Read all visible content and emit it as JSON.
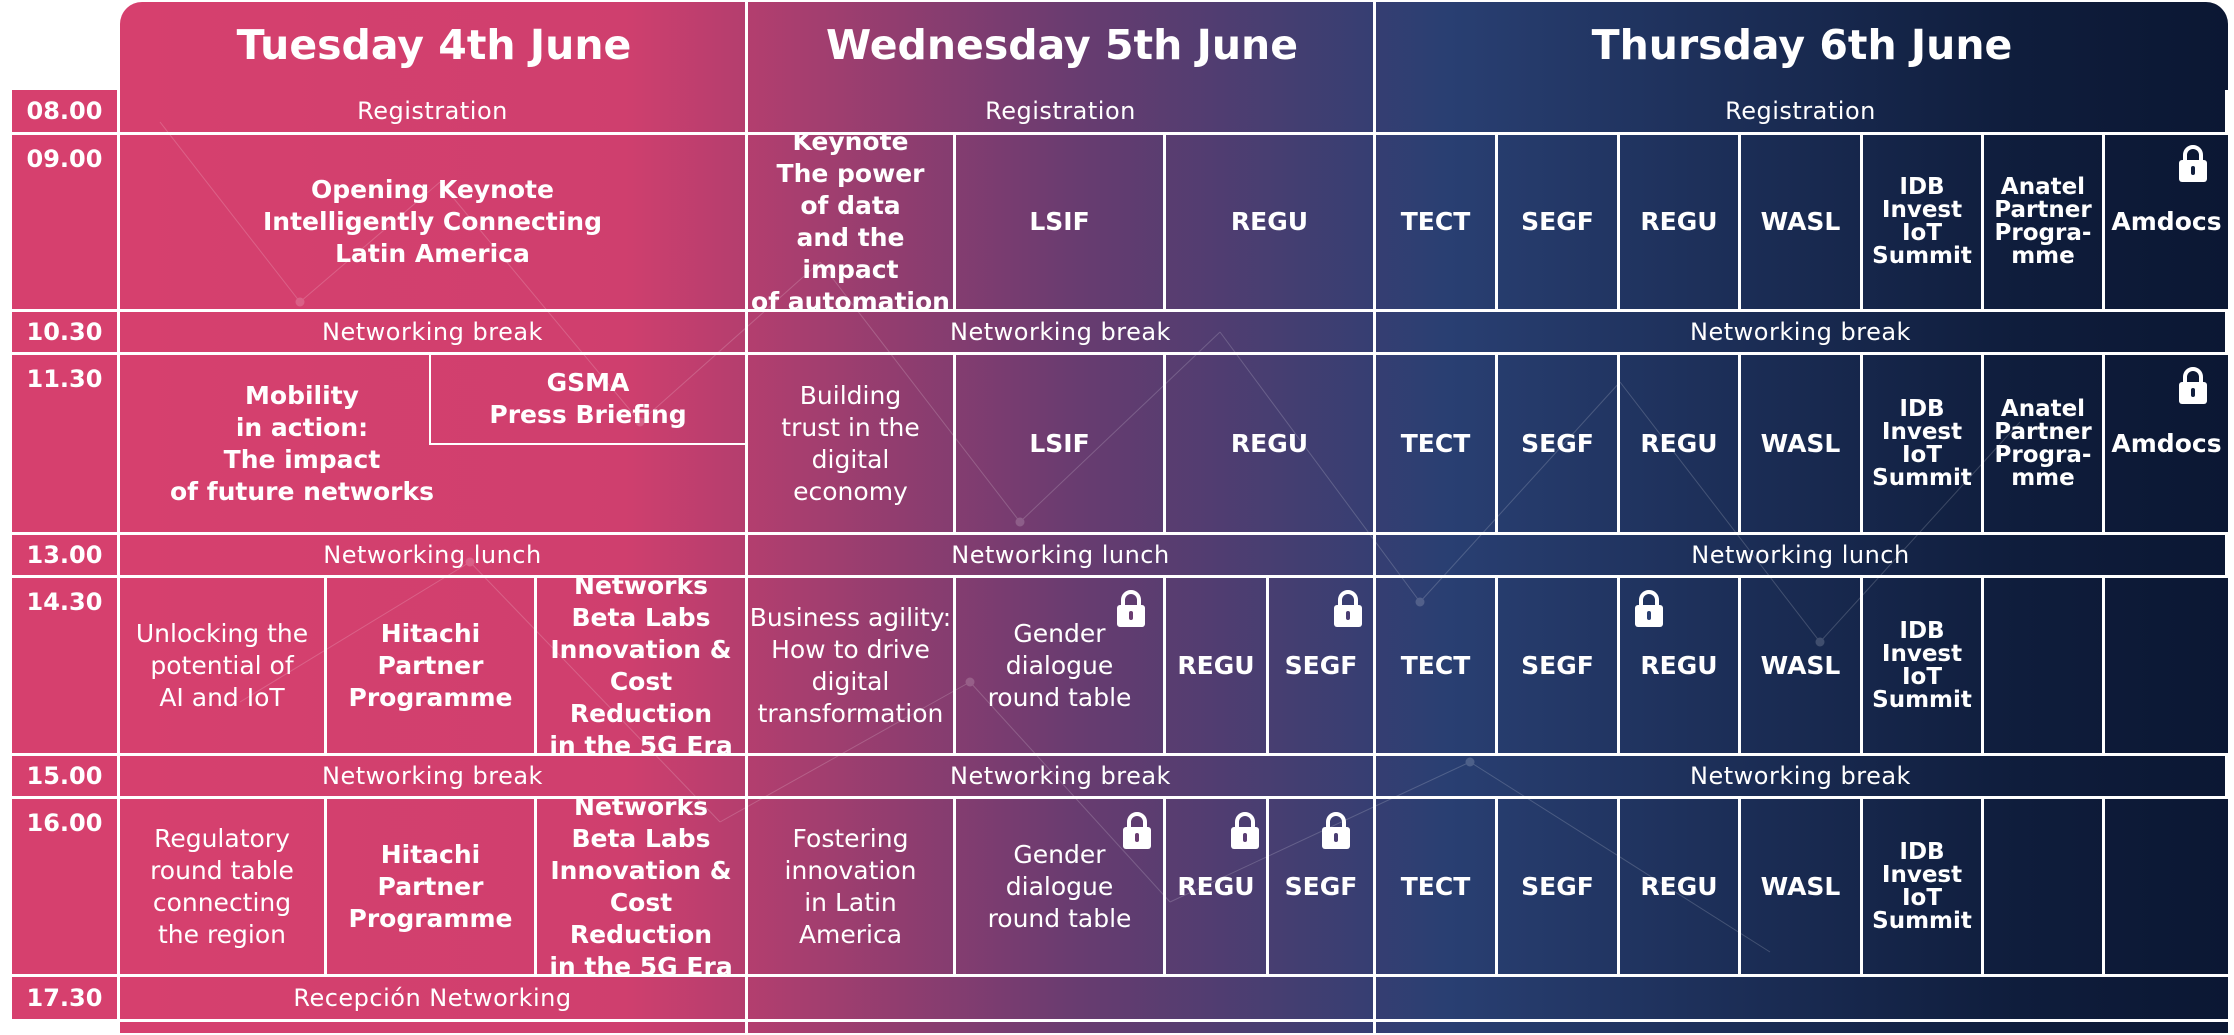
{
  "days": [
    "Tuesday 4th June",
    "Wednesday 5th June",
    "Thursday 6th June"
  ],
  "times": [
    "08.00",
    "09.00",
    "10.30",
    "11.30",
    "13.00",
    "14.30",
    "15.00",
    "16.00",
    "17.30"
  ],
  "bars": {
    "registration": "Registration",
    "networking_break": "Networking break",
    "networking_lunch": "Networking lunch",
    "reception": "Recepción Networking"
  },
  "tue": {
    "opening_keynote": [
      "Opening Keynote",
      "Intelligently Connecting",
      "Latin America"
    ],
    "mobility": [
      "Mobility",
      "in action:",
      "The impact",
      "of future networks"
    ],
    "gsma": [
      "GSMA",
      "Press Briefing"
    ],
    "unlocking": [
      "Unlocking the",
      "potential of",
      "AI and IoT"
    ],
    "hitachi": [
      "Hitachi",
      "Partner",
      "Programme"
    ],
    "networks_beta": [
      "Networks",
      "Beta Labs",
      "Innovation &",
      "Cost Reduction",
      "in the 5G Era"
    ],
    "regulatory": [
      "Regulatory",
      "round table",
      "connecting",
      "the region"
    ]
  },
  "wed": {
    "keynote": [
      "Keynote",
      "The power",
      "of data",
      "and the impact",
      "of automation"
    ],
    "building_trust": [
      "Building",
      "trust in the",
      "digital",
      "economy"
    ],
    "business_agility": [
      "Business agility:",
      "How to drive",
      "digital",
      "transformation"
    ],
    "fostering": [
      "Fostering",
      "innovation",
      "in Latin",
      "America"
    ],
    "gender": [
      "Gender",
      "dialogue",
      "round table"
    ]
  },
  "thu": {
    "idb": [
      "IDB",
      "Invest",
      "IoT",
      "Summit"
    ],
    "anatel": [
      "Anatel",
      "Partner",
      "Progra-",
      "mme"
    ]
  },
  "codes": {
    "lsif": "LSIF",
    "regu": "REGU",
    "tect": "TECT",
    "segf": "SEGF",
    "wasl": "WASL",
    "amdocs": "Amdocs"
  },
  "icons": {
    "lock": "lock-icon"
  },
  "colors": {
    "magenta": "#d6406e",
    "purple": "#6a3c70",
    "navy": "#0f1d3c",
    "text": "#ffffff"
  }
}
